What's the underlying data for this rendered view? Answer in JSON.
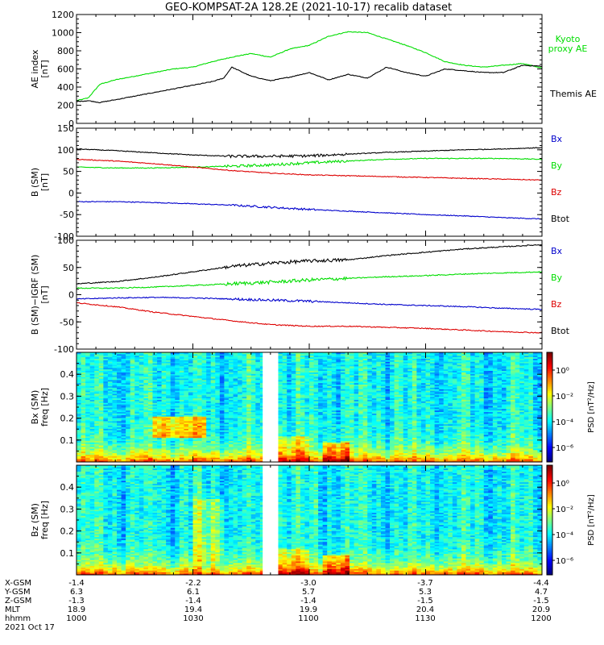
{
  "title": "GEO-KOMPSAT-2A 128.2E (2021-10-17) recalib dataset",
  "colors": {
    "black": "#000000",
    "green": "#00dd00",
    "red": "#dd0000",
    "blue": "#0000cc",
    "gap": "#ffffff"
  },
  "chart_data": [
    {
      "type": "line",
      "ylabel": [
        "AE index",
        "[nT]"
      ],
      "ylim": [
        0,
        1200
      ],
      "yticks": [
        0,
        200,
        400,
        600,
        800,
        1000,
        1200
      ],
      "xlim": [
        0,
        120
      ],
      "series": [
        {
          "name": "Kyoto proxy AE",
          "legend": [
            "Kyoto",
            "proxy AE"
          ],
          "color": "green",
          "x": [
            0,
            3,
            6,
            10,
            15,
            20,
            25,
            30,
            35,
            40,
            45,
            50,
            55,
            60,
            65,
            70,
            75,
            80,
            85,
            90,
            95,
            100,
            105,
            110,
            115,
            120
          ],
          "y": [
            250,
            280,
            430,
            480,
            520,
            560,
            600,
            620,
            680,
            730,
            770,
            730,
            820,
            860,
            960,
            1010,
            1000,
            930,
            860,
            780,
            680,
            640,
            620,
            640,
            660,
            610
          ]
        },
        {
          "name": "Themis AE",
          "legend": [
            "Themis AE"
          ],
          "color": "black",
          "x": [
            0,
            3,
            6,
            10,
            15,
            20,
            25,
            30,
            35,
            38,
            40,
            45,
            50,
            55,
            60,
            65,
            70,
            75,
            80,
            85,
            90,
            95,
            100,
            105,
            110,
            115,
            120
          ],
          "y": [
            240,
            250,
            230,
            260,
            300,
            340,
            380,
            420,
            460,
            500,
            620,
            520,
            470,
            510,
            560,
            480,
            540,
            500,
            620,
            560,
            520,
            600,
            580,
            560,
            560,
            640,
            630
          ]
        }
      ]
    },
    {
      "type": "line",
      "ylabel": [
        "B (SM)",
        "[nT]"
      ],
      "ylim": [
        -100,
        150
      ],
      "yticks": [
        -100,
        -50,
        0,
        50,
        100,
        150
      ],
      "xlim": [
        0,
        120
      ],
      "series": [
        {
          "name": "Bx",
          "color": "blue",
          "x": [
            0,
            10,
            20,
            30,
            40,
            50,
            60,
            70,
            80,
            90,
            100,
            110,
            120
          ],
          "y": [
            -20,
            -20,
            -22,
            -25,
            -28,
            -33,
            -38,
            -42,
            -46,
            -50,
            -53,
            -57,
            -60
          ]
        },
        {
          "name": "By",
          "color": "green",
          "x": [
            0,
            10,
            20,
            30,
            40,
            50,
            60,
            70,
            80,
            90,
            100,
            110,
            120
          ],
          "y": [
            60,
            58,
            58,
            60,
            62,
            65,
            70,
            74,
            78,
            80,
            80,
            80,
            78
          ]
        },
        {
          "name": "Bz",
          "color": "red",
          "x": [
            0,
            10,
            20,
            30,
            40,
            50,
            60,
            70,
            80,
            90,
            100,
            110,
            120
          ],
          "y": [
            78,
            74,
            68,
            60,
            52,
            46,
            42,
            40,
            38,
            36,
            34,
            32,
            30
          ]
        },
        {
          "name": "Btot",
          "color": "black",
          "x": [
            0,
            10,
            20,
            30,
            40,
            50,
            60,
            70,
            80,
            90,
            100,
            110,
            120
          ],
          "y": [
            102,
            98,
            93,
            88,
            85,
            85,
            86,
            90,
            94,
            97,
            100,
            102,
            105
          ]
        }
      ]
    },
    {
      "type": "line",
      "ylabel": [
        "B (SM)−IGRF (SM)",
        "[nT]"
      ],
      "ylim": [
        -100,
        100
      ],
      "yticks": [
        -100,
        -50,
        0,
        50,
        100
      ],
      "xlim": [
        0,
        120
      ],
      "series": [
        {
          "name": "Bx",
          "color": "blue",
          "x": [
            0,
            10,
            20,
            30,
            40,
            50,
            60,
            70,
            80,
            90,
            100,
            110,
            120
          ],
          "y": [
            -8,
            -6,
            -5,
            -6,
            -8,
            -10,
            -12,
            -15,
            -18,
            -20,
            -22,
            -25,
            -27
          ]
        },
        {
          "name": "By",
          "color": "green",
          "x": [
            0,
            10,
            20,
            30,
            40,
            50,
            60,
            70,
            80,
            90,
            100,
            110,
            120
          ],
          "y": [
            12,
            12,
            14,
            17,
            20,
            23,
            27,
            30,
            33,
            35,
            38,
            40,
            42
          ]
        },
        {
          "name": "Bz",
          "color": "red",
          "x": [
            0,
            10,
            20,
            30,
            40,
            50,
            60,
            70,
            80,
            90,
            100,
            110,
            120
          ],
          "y": [
            -15,
            -22,
            -32,
            -40,
            -48,
            -55,
            -58,
            -58,
            -60,
            -62,
            -65,
            -68,
            -70
          ]
        },
        {
          "name": "Btot",
          "color": "black",
          "x": [
            0,
            10,
            20,
            30,
            40,
            50,
            60,
            70,
            80,
            90,
            100,
            110,
            120
          ],
          "y": [
            20,
            24,
            32,
            42,
            52,
            58,
            62,
            64,
            72,
            78,
            84,
            88,
            92
          ]
        }
      ]
    },
    {
      "type": "heatmap",
      "ylabel": [
        "Bx (SM)",
        "freq [Hz]"
      ],
      "ylim": [
        0,
        0.5
      ],
      "yticks": [
        0.1,
        0.2,
        0.3,
        0.4
      ],
      "yticklabels": [
        "0.1",
        "0.2",
        "0.3",
        "0.4"
      ],
      "xlim": [
        0,
        120
      ],
      "gap": [
        48,
        52
      ],
      "colorbar": {
        "label": "PSD [nT²/Hz]",
        "ticks": [
          "10⁰",
          "10⁻²",
          "10⁻⁴",
          "10⁻⁶"
        ]
      }
    },
    {
      "type": "heatmap",
      "ylabel": [
        "Bz (SM)",
        "freq [Hz]"
      ],
      "ylim": [
        0,
        0.5
      ],
      "yticks": [
        0.1,
        0.2,
        0.3,
        0.4
      ],
      "yticklabels": [
        "0.1",
        "0.2",
        "0.3",
        "0.4"
      ],
      "xlim": [
        0,
        120
      ],
      "gap": [
        48,
        52
      ],
      "colorbar": {
        "label": "PSD [nT²/Hz]",
        "ticks": [
          "10⁰",
          "10⁻²",
          "10⁻⁴",
          "10⁻⁶"
        ]
      }
    }
  ],
  "ephemeris": {
    "rows": [
      {
        "label": "X-GSM",
        "values": [
          "-1.4",
          "-2.2",
          "-3.0",
          "-3.7",
          "-4.4"
        ]
      },
      {
        "label": "Y-GSM",
        "values": [
          "6.3",
          "6.1",
          "5.7",
          "5.3",
          "4.7"
        ]
      },
      {
        "label": "Z-GSM",
        "values": [
          "-1.3",
          "-1.4",
          "-1.4",
          "-1.5",
          "-1.5"
        ]
      },
      {
        "label": "MLT",
        "values": [
          "18.9",
          "19.4",
          "19.9",
          "20.4",
          "20.9"
        ]
      },
      {
        "label": "hhmm",
        "values": [
          "1000",
          "1030",
          "1100",
          "1130",
          "1200"
        ]
      }
    ],
    "date": "2021 Oct 17"
  }
}
